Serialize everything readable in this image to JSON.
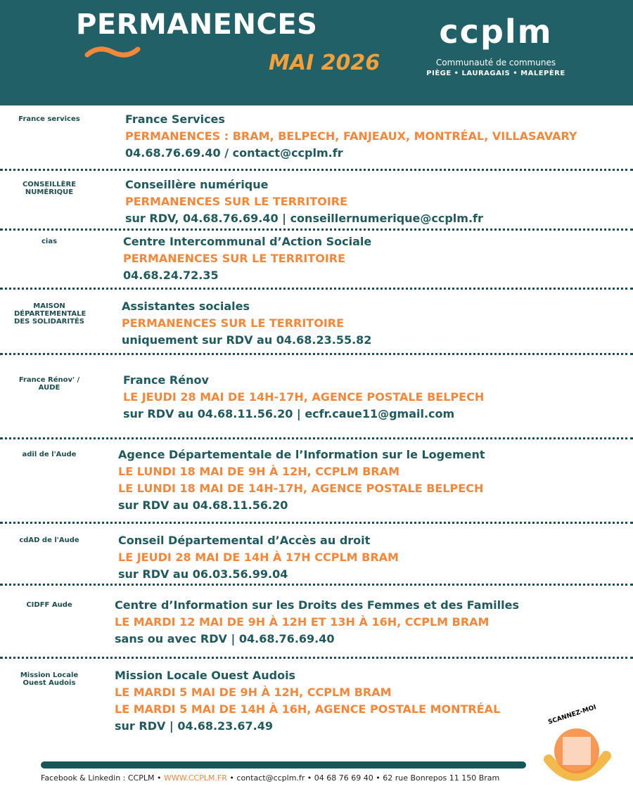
{
  "header": {
    "title": "PERMANENCES",
    "month": "MAI 2026",
    "logo": {
      "mark": "ccplm",
      "line1": "Communauté de communes",
      "line2": "PIÈGE • LAURAGAIS • MALEPÈRE"
    }
  },
  "sections": [
    {
      "logo": "France services",
      "name": "France Services",
      "lines": [
        "PERMANENCES : BRAM, BELPECH, FANJEAUX, MONTRÉAL, VILLASAVARY"
      ],
      "contact": "04.68.76.69.40 / contact@ccplm.fr"
    },
    {
      "logo": "CONSEILLÈRE NUMÉRIQUE",
      "name": "Conseillère numérique",
      "lines": [
        "PERMANENCES SUR LE TERRITOIRE"
      ],
      "contact": "sur RDV, 04.68.76.69.40 | conseillernumerique@ccplm.fr"
    },
    {
      "logo": "cias",
      "name": "Centre Intercommunal d’Action Sociale",
      "lines": [
        "PERMANENCES SUR LE TERRITOIRE"
      ],
      "contact": "04.68.24.72.35"
    },
    {
      "logo": "MAISON DÉPARTEMENTALE DES SOLIDARITÉS",
      "name": "Assistantes sociales",
      "lines": [
        "PERMANENCES SUR LE TERRITOIRE"
      ],
      "contact": "uniquement sur RDV au 04.68.23.55.82"
    },
    {
      "logo": "France Rénov' / AUDE",
      "name": "France Rénov",
      "lines": [
        "LE JEUDI 28 MAI DE 14H-17H, AGENCE POSTALE BELPECH"
      ],
      "contact": "sur RDV au 04.68.11.56.20 | ecfr.caue11@gmail.com"
    },
    {
      "logo": "adil de l'Aude",
      "name": "Agence Départementale de l’Information sur le Logement",
      "lines": [
        "LE LUNDI 18 MAI DE 9H À 12H, CCPLM BRAM",
        "LE LUNDI 18 MAI DE 14H-17H, AGENCE POSTALE BELPECH"
      ],
      "contact": "sur RDV au 04.68.11.56.20"
    },
    {
      "logo": "cdAD de l'Aude",
      "name": "Conseil Départemental d’Accès au droit",
      "lines": [
        "LE JEUDI 28 MAI DE 14H À 17H CCPLM BRAM"
      ],
      "contact": "sur RDV au 06.03.56.99.04"
    },
    {
      "logo": "CIDFF Aude",
      "name": "Centre d’Information sur les Droits des Femmes et des Familles",
      "lines": [
        "LE MARDI 12 MAI DE 9H À 12H ET 13H À 16H, CCPLM BRAM"
      ],
      "contact": "sans ou avec RDV  | 04.68.76.69.40"
    },
    {
      "logo": "Mission Locale Ouest Audois",
      "name": "Mission Locale Ouest Audois",
      "lines": [
        "LE MARDI 5 MAI DE 9H À 12H, CCPLM BRAM",
        "LE MARDI 5 MAI DE 14H À 16H, AGENCE POSTALE MONTRÉAL"
      ],
      "contact": "sur RDV  | 04.68.23.67.49"
    }
  ],
  "qr": {
    "label": "SCANNEZ-MOI"
  },
  "footer": {
    "social": "Facebook & Linkedin : CCPLM • ",
    "web": "WWW.CCPLM.FR",
    "rest": " • contact@ccplm.fr • 04 68 76 69 40 • 62 rue Bonrepos 11 150 Bram"
  },
  "colors": {
    "teal": "#216066",
    "orange": "#f5873a",
    "gold": "#f3a03b"
  }
}
